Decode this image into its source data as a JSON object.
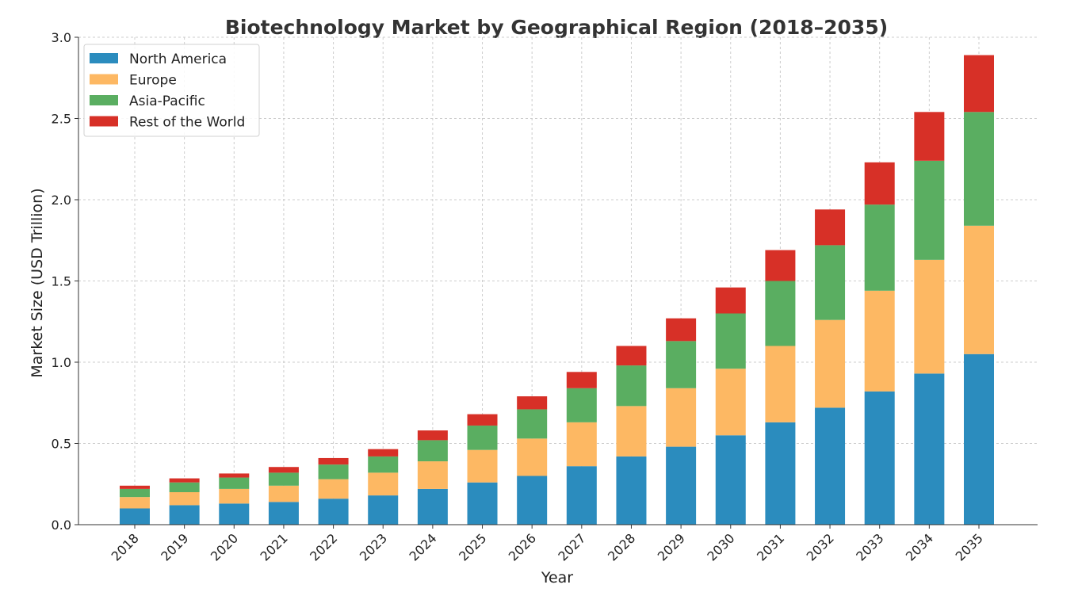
{
  "chart_data": {
    "type": "bar",
    "stacked": true,
    "title": "Biotechnology Market by Geographical Region (2018–2035)",
    "xlabel": "Year",
    "ylabel": "Market Size (USD Trillion)",
    "ylim": [
      0,
      3.0
    ],
    "yticks": [
      "0.0",
      "0.5",
      "1.0",
      "1.5",
      "2.0",
      "2.5",
      "3.0"
    ],
    "grid": true,
    "legend_position": "top-left",
    "categories": [
      "2018",
      "2019",
      "2020",
      "2021",
      "2022",
      "2023",
      "2024",
      "2025",
      "2026",
      "2027",
      "2028",
      "2029",
      "2030",
      "2031",
      "2032",
      "2033",
      "2034",
      "2035"
    ],
    "series": [
      {
        "name": "North America",
        "color": "#2b8cbe",
        "values": [
          0.1,
          0.12,
          0.13,
          0.14,
          0.16,
          0.18,
          0.22,
          0.26,
          0.3,
          0.36,
          0.42,
          0.48,
          0.55,
          0.63,
          0.72,
          0.82,
          0.93,
          1.05
        ]
      },
      {
        "name": "Europe",
        "color": "#fdb863",
        "values": [
          0.07,
          0.08,
          0.09,
          0.1,
          0.12,
          0.14,
          0.17,
          0.2,
          0.23,
          0.27,
          0.31,
          0.36,
          0.41,
          0.47,
          0.54,
          0.62,
          0.7,
          0.79
        ]
      },
      {
        "name": "Asia-Pacific",
        "color": "#5aae61",
        "values": [
          0.05,
          0.06,
          0.07,
          0.08,
          0.09,
          0.1,
          0.13,
          0.15,
          0.18,
          0.21,
          0.25,
          0.29,
          0.34,
          0.4,
          0.46,
          0.53,
          0.61,
          0.7
        ]
      },
      {
        "name": "Rest of the World",
        "color": "#d73027",
        "values": [
          0.02,
          0.025,
          0.025,
          0.035,
          0.04,
          0.045,
          0.06,
          0.07,
          0.08,
          0.1,
          0.12,
          0.14,
          0.16,
          0.19,
          0.22,
          0.26,
          0.3,
          0.35
        ]
      }
    ]
  }
}
